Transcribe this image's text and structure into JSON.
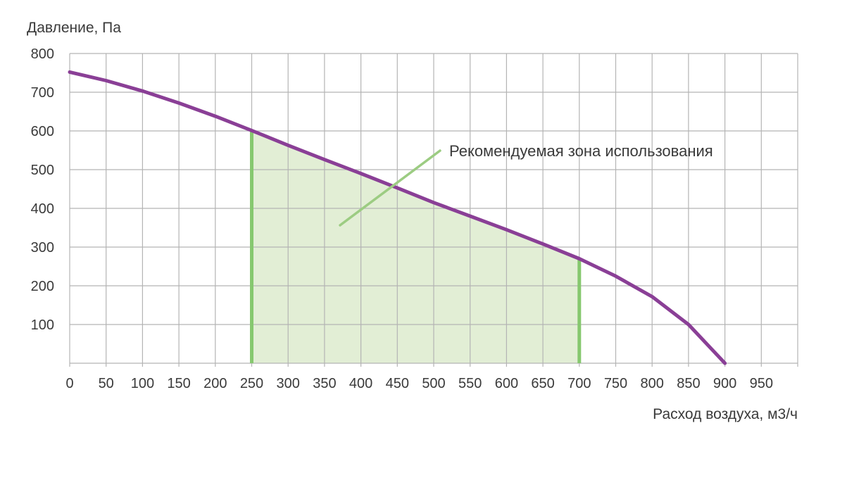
{
  "chart_data": {
    "type": "line",
    "ylabel": "Давление, Па",
    "xlabel": "Расход воздуха, м3/ч",
    "xlim": [
      0,
      1000
    ],
    "ylim": [
      0,
      800
    ],
    "x_ticks": [
      0,
      50,
      100,
      150,
      200,
      250,
      300,
      350,
      400,
      450,
      500,
      550,
      600,
      650,
      700,
      750,
      800,
      850,
      900,
      950
    ],
    "y_ticks": [
      100,
      200,
      300,
      400,
      500,
      600,
      700,
      800
    ],
    "grid": true,
    "series": [
      {
        "x": [
          0,
          50,
          100,
          150,
          200,
          250,
          300,
          350,
          400,
          450,
          500,
          550,
          600,
          650,
          700,
          750,
          800,
          850,
          900
        ],
        "y": [
          752,
          730,
          703,
          672,
          638,
          601,
          563,
          526,
          490,
          453,
          415,
          380,
          345,
          308,
          270,
          225,
          172,
          100,
          0
        ],
        "color": "#8a3f96"
      }
    ],
    "recommended_zone": {
      "label": "Рекомендуемая зона использования",
      "x_range": [
        250,
        700
      ],
      "fill_color": "#e2eed5",
      "border_color": "#86c86f",
      "pointer_color": "#9ccc82"
    }
  }
}
